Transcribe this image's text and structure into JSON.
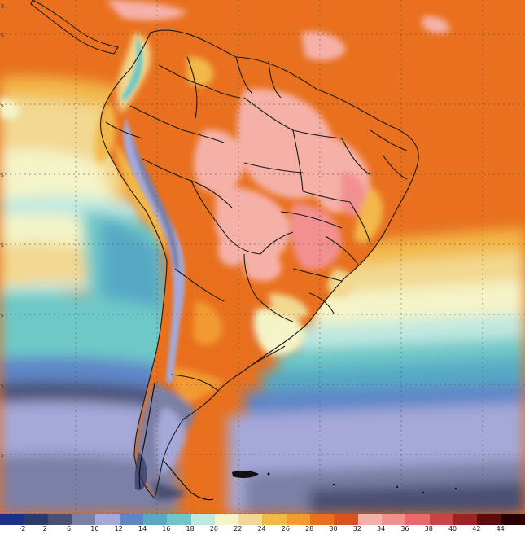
{
  "map": {
    "legend": {
      "labels": [
        "-2",
        "2",
        "6",
        "10",
        "12",
        "14",
        "16",
        "18",
        "20",
        "22",
        "24",
        "26",
        "28",
        "30",
        "32",
        "34",
        "36",
        "38",
        "40",
        "42",
        "44"
      ],
      "colors": [
        "#1d2f8e",
        "#2c3a6a",
        "#4a4f73",
        "#7c80a6",
        "#a5a8d8",
        "#5e86c7",
        "#57a9c4",
        "#6ec8c8",
        "#bfe8e0",
        "#f4f4c8",
        "#f2d890",
        "#f2b84a",
        "#f29a30",
        "#e8701e",
        "#d9531a",
        "#f5b1a8",
        "#f29090",
        "#e96a6a",
        "#c94545",
        "#9b2323",
        "#5e0a0a",
        "#2b0000"
      ]
    },
    "grid": {
      "lines": true
    }
  }
}
